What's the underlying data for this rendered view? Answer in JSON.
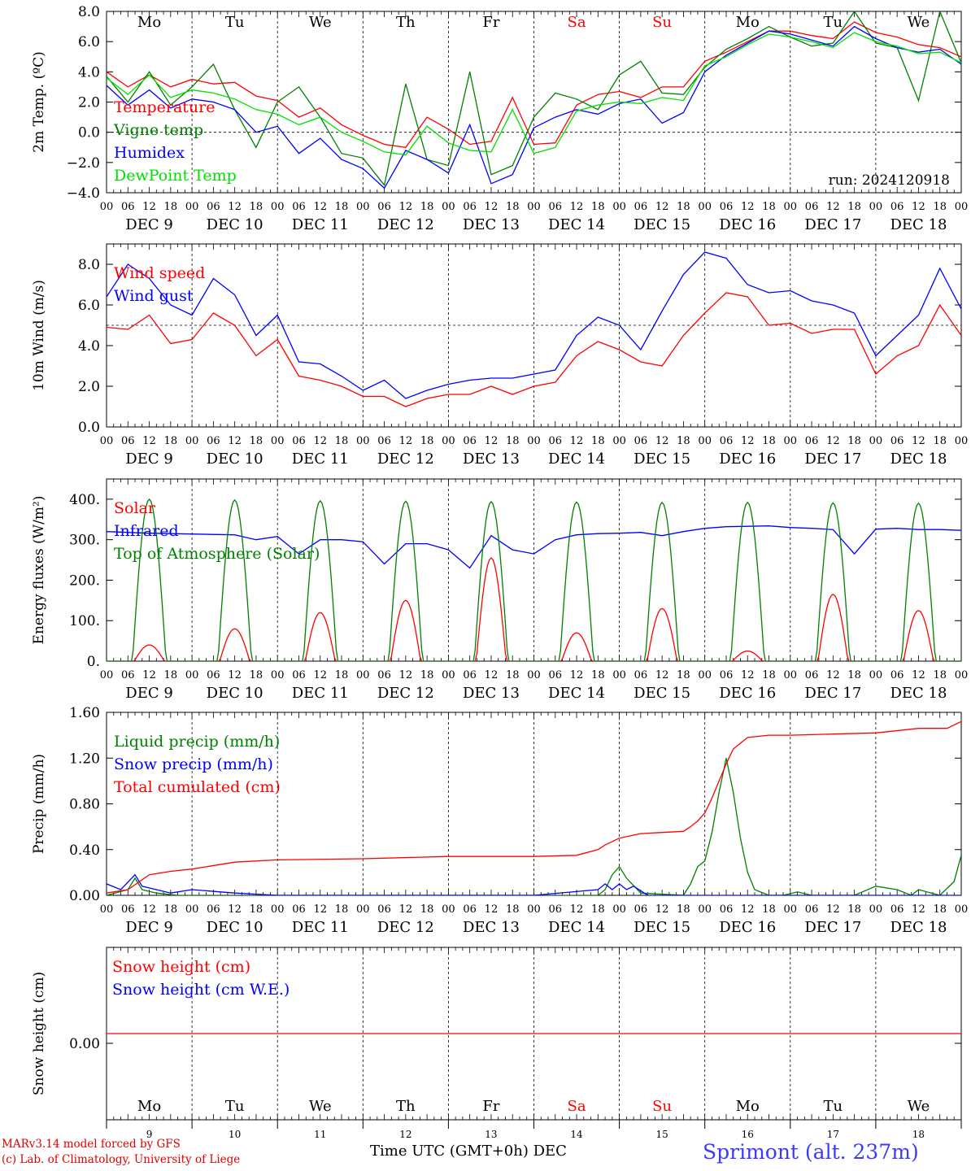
{
  "run_label": "run: 2024120918",
  "footer": {
    "credit_line1": "MARv3.14 model forced by GFS",
    "credit_line2": "(c) Lab. of Climatology, University of Liege",
    "x_axis_title": "Time UTC (GMT+0h) DEC",
    "station": "Sprimont (alt. 237m)"
  },
  "time_axis": {
    "hour_ticks": [
      "00",
      "06",
      "12",
      "18"
    ],
    "date_labels": [
      "DEC  9",
      "DEC 10",
      "DEC 11",
      "DEC 12",
      "DEC 13",
      "DEC 14",
      "DEC 15",
      "DEC 16",
      "DEC 17",
      "DEC 18"
    ],
    "weekdays": [
      "Mo",
      "Tu",
      "We",
      "Th",
      "Fr",
      "Sa",
      "Su",
      "Mo",
      "Tu",
      "We"
    ],
    "weekend_days": [
      5,
      6
    ],
    "day_numbers": [
      "9",
      "10",
      "11",
      "12",
      "13",
      "14",
      "15",
      "16",
      "17",
      "18"
    ]
  },
  "colors": {
    "red": "#ff0000",
    "green": "#008000",
    "blue": "#0000ff",
    "light_green": "#00e000",
    "weekend": "#ff0000"
  },
  "chart_data": [
    {
      "type": "line",
      "ylabel": "2m Temp. (ºC)",
      "ylim": [
        -4,
        8
      ],
      "yticks": [
        "8.0",
        "6.0",
        "4.0",
        "2.0",
        "0.0",
        "−2.0",
        "−4.0"
      ],
      "ytick_values": [
        8,
        6,
        4,
        2,
        0,
        -2,
        -4
      ],
      "reference_line": 0,
      "x_unit": "hours since DEC 9 00 UTC",
      "series": [
        {
          "name": "Temperature",
          "color": "#ff0000",
          "x": [
            0,
            6,
            12,
            18,
            24,
            30,
            36,
            42,
            48,
            54,
            60,
            66,
            72,
            78,
            84,
            90,
            96,
            102,
            108,
            114,
            120,
            126,
            132,
            138,
            144,
            150,
            156,
            162,
            168,
            174,
            180,
            186,
            192,
            198,
            204,
            210,
            216,
            222,
            228,
            234,
            240
          ],
          "y": [
            4.0,
            3.0,
            3.8,
            3.0,
            3.5,
            3.2,
            3.3,
            2.4,
            2.1,
            1.0,
            1.6,
            0.5,
            -0.2,
            -0.8,
            -1.0,
            1.0,
            0.2,
            -0.8,
            -0.6,
            2.3,
            -0.8,
            -0.7,
            1.8,
            2.5,
            2.7,
            2.3,
            3.0,
            3.0,
            4.7,
            5.3,
            6.0,
            6.7,
            6.7,
            6.4,
            6.2,
            7.3,
            6.6,
            6.3,
            5.8,
            5.6,
            5.0
          ]
        },
        {
          "name": "Vigne temp",
          "color": "#008000",
          "x": [
            0,
            6,
            12,
            18,
            24,
            30,
            36,
            42,
            48,
            54,
            60,
            66,
            72,
            78,
            84,
            90,
            96,
            102,
            108,
            114,
            120,
            126,
            132,
            138,
            144,
            150,
            156,
            162,
            168,
            174,
            180,
            186,
            192,
            198,
            204,
            210,
            216,
            222,
            228,
            234,
            240
          ],
          "y": [
            3.7,
            2.0,
            4.0,
            1.8,
            3.0,
            4.5,
            1.5,
            -1.0,
            2.0,
            3.0,
            1.0,
            -1.4,
            -1.7,
            -3.5,
            3.2,
            -1.8,
            -2.2,
            4.0,
            -2.8,
            -2.2,
            1.0,
            2.6,
            2.2,
            1.5,
            3.8,
            4.7,
            2.6,
            2.5,
            4.3,
            5.5,
            6.2,
            7.0,
            6.3,
            5.7,
            5.9,
            8.0,
            5.9,
            5.6,
            2.1,
            8.0,
            4.6
          ]
        },
        {
          "name": "Humidex",
          "color": "#0000ff",
          "x": [
            0,
            6,
            12,
            18,
            24,
            30,
            36,
            42,
            48,
            54,
            60,
            66,
            72,
            78,
            84,
            90,
            96,
            102,
            108,
            114,
            120,
            126,
            132,
            138,
            144,
            150,
            156,
            162,
            168,
            174,
            180,
            186,
            192,
            198,
            204,
            210,
            216,
            222,
            228,
            234,
            240
          ],
          "y": [
            3.1,
            1.8,
            2.8,
            1.6,
            2.2,
            2.0,
            1.5,
            0.0,
            0.4,
            -1.4,
            -0.4,
            -1.8,
            -2.4,
            -3.7,
            -1.2,
            -1.8,
            -2.7,
            0.5,
            -3.4,
            -2.8,
            0.3,
            1.0,
            1.5,
            1.2,
            1.9,
            2.2,
            0.6,
            1.3,
            4.0,
            5.1,
            5.9,
            6.7,
            6.5,
            6.1,
            5.7,
            7.0,
            6.2,
            5.6,
            5.3,
            5.5,
            4.5
          ]
        },
        {
          "name": "DewPoint Temp",
          "color": "#00e000",
          "x": [
            0,
            6,
            12,
            18,
            24,
            30,
            36,
            42,
            48,
            54,
            60,
            66,
            72,
            78,
            84,
            90,
            96,
            102,
            108,
            114,
            120,
            126,
            132,
            138,
            144,
            150,
            156,
            162,
            168,
            174,
            180,
            186,
            192,
            198,
            204,
            210,
            216,
            222,
            228,
            234,
            240
          ],
          "y": [
            3.6,
            2.5,
            3.8,
            2.3,
            2.8,
            2.6,
            2.2,
            1.5,
            1.2,
            0.5,
            1.0,
            0.0,
            -0.6,
            -1.3,
            -1.5,
            0.4,
            -0.7,
            -1.2,
            -1.3,
            1.5,
            -1.4,
            -1.0,
            1.4,
            1.8,
            2.0,
            1.9,
            2.3,
            2.1,
            4.4,
            5.0,
            5.8,
            6.5,
            6.3,
            6.0,
            5.6,
            6.6,
            6.0,
            5.7,
            5.2,
            5.3,
            4.6
          ]
        }
      ],
      "legend": [
        "Temperature",
        "Vigne temp",
        "Humidex",
        "DewPoint Temp"
      ]
    },
    {
      "type": "line",
      "ylabel": "10m Wind (m/s)",
      "ylim": [
        0,
        9
      ],
      "yticks": [
        "8.0",
        "6.0",
        "4.0",
        "2.0",
        "0.0"
      ],
      "ytick_values": [
        8,
        6,
        4,
        2,
        0
      ],
      "reference_line": 5,
      "x_unit": "hours since DEC 9 00 UTC",
      "series": [
        {
          "name": "Wind speed",
          "color": "#ff0000",
          "x": [
            0,
            6,
            12,
            18,
            24,
            30,
            36,
            42,
            48,
            54,
            60,
            66,
            72,
            78,
            84,
            90,
            96,
            102,
            108,
            114,
            120,
            126,
            132,
            138,
            144,
            150,
            156,
            162,
            168,
            174,
            180,
            186,
            192,
            198,
            204,
            210,
            216,
            222,
            228,
            234,
            240
          ],
          "y": [
            4.9,
            4.8,
            5.5,
            4.1,
            4.3,
            5.6,
            5.0,
            3.5,
            4.3,
            2.5,
            2.3,
            2.0,
            1.5,
            1.5,
            1.0,
            1.4,
            1.6,
            1.6,
            2.0,
            1.6,
            2.0,
            2.2,
            3.5,
            4.2,
            3.8,
            3.2,
            3.0,
            4.5,
            5.6,
            6.6,
            6.4,
            5.0,
            5.1,
            4.6,
            4.8,
            4.8,
            2.6,
            3.5,
            4.0,
            6.0,
            4.5
          ]
        },
        {
          "name": "Wind gust",
          "color": "#0000ff",
          "x": [
            0,
            6,
            12,
            18,
            24,
            30,
            36,
            42,
            48,
            54,
            60,
            66,
            72,
            78,
            84,
            90,
            96,
            102,
            108,
            114,
            120,
            126,
            132,
            138,
            144,
            150,
            156,
            162,
            168,
            174,
            180,
            186,
            192,
            198,
            204,
            210,
            216,
            222,
            228,
            234,
            240
          ],
          "y": [
            6.4,
            8.0,
            7.3,
            6.0,
            5.5,
            7.3,
            6.5,
            4.5,
            5.5,
            3.2,
            3.1,
            2.5,
            1.8,
            2.3,
            1.4,
            1.8,
            2.1,
            2.3,
            2.4,
            2.4,
            2.6,
            2.8,
            4.5,
            5.4,
            5.0,
            3.8,
            5.7,
            7.5,
            8.6,
            8.3,
            7.0,
            6.6,
            6.7,
            6.2,
            6.0,
            5.6,
            3.5,
            4.5,
            5.5,
            7.8,
            5.8
          ]
        }
      ],
      "legend": [
        "Wind speed",
        "Wind gust"
      ]
    },
    {
      "type": "line",
      "ylabel": "Energy fluxes (W/m²)",
      "ylim": [
        0,
        450
      ],
      "yticks": [
        "400.",
        "300.",
        "200.",
        "100.",
        "0."
      ],
      "ytick_values": [
        400,
        300,
        200,
        100,
        0
      ],
      "x_unit": "hours since DEC 9 00 UTC",
      "series": [
        {
          "name": "Solar",
          "color": "#ff0000",
          "daily_peaks": [
            40,
            80,
            120,
            150,
            255,
            70,
            130,
            25,
            165,
            125
          ]
        },
        {
          "name": "Infrared",
          "color": "#0000ff",
          "x": [
            0,
            12,
            24,
            36,
            42,
            48,
            54,
            60,
            66,
            72,
            78,
            84,
            90,
            96,
            102,
            108,
            114,
            120,
            126,
            132,
            138,
            144,
            150,
            156,
            162,
            168,
            174,
            180,
            186,
            192,
            198,
            204,
            210,
            216,
            222,
            228,
            234,
            240
          ],
          "y": [
            320,
            316,
            314,
            312,
            300,
            308,
            265,
            300,
            300,
            295,
            240,
            290,
            290,
            275,
            230,
            310,
            275,
            265,
            300,
            312,
            315,
            316,
            318,
            310,
            320,
            328,
            332,
            333,
            334,
            330,
            328,
            325,
            265,
            326,
            328,
            325,
            325,
            323
          ]
        },
        {
          "name": "Top of Atmosphere (Solar)",
          "color": "#008000",
          "daily_peaks": [
            400,
            398,
            396,
            395,
            394,
            393,
            392,
            392,
            391,
            390
          ]
        }
      ],
      "legend": [
        "Solar",
        "Infrared",
        "Top of Atmosphere (Solar)"
      ]
    },
    {
      "type": "line",
      "ylabel": "Precip (mm/h)",
      "ylim": [
        0,
        1.6
      ],
      "yticks": [
        "1.60",
        "1.20",
        "0.80",
        "0.40",
        "0.00"
      ],
      "ytick_values": [
        1.6,
        1.2,
        0.8,
        0.4,
        0
      ],
      "x_unit": "hours since DEC 9 00 UTC",
      "series": [
        {
          "name": "Liquid precip (mm/h)",
          "color": "#008000",
          "x": [
            0,
            6,
            8,
            10,
            14,
            20,
            24,
            36,
            48,
            96,
            120,
            138,
            140,
            142,
            144,
            146,
            150,
            162,
            164,
            166,
            168,
            170,
            172,
            174,
            176,
            178,
            180,
            182,
            186,
            190,
            194,
            198,
            202,
            210,
            216,
            222,
            226,
            228,
            234,
            238,
            240
          ],
          "y": [
            0.0,
            0.05,
            0.15,
            0.05,
            0.02,
            0.0,
            0.0,
            0.0,
            0.0,
            0.0,
            0.0,
            0.0,
            0.05,
            0.18,
            0.25,
            0.15,
            0.02,
            0.0,
            0.1,
            0.25,
            0.3,
            0.55,
            0.9,
            1.2,
            0.9,
            0.5,
            0.2,
            0.05,
            0.0,
            0.0,
            0.03,
            0.0,
            0.0,
            0.0,
            0.08,
            0.05,
            0.0,
            0.05,
            0.0,
            0.12,
            0.35
          ]
        },
        {
          "name": "Snow precip (mm/h)",
          "color": "#0000ff",
          "x": [
            0,
            4,
            8,
            10,
            14,
            18,
            24,
            36,
            48,
            96,
            120,
            138,
            140,
            142,
            144,
            146,
            148,
            152,
            160,
            240
          ],
          "y": [
            0.1,
            0.05,
            0.18,
            0.08,
            0.05,
            0.02,
            0.05,
            0.02,
            0.0,
            0.0,
            0.0,
            0.05,
            0.1,
            0.05,
            0.1,
            0.05,
            0.08,
            0.0,
            0.0,
            0.0
          ]
        },
        {
          "name": "Total cumulated (cm)",
          "color": "#ff0000",
          "x": [
            0,
            6,
            12,
            18,
            24,
            36,
            48,
            72,
            96,
            120,
            132,
            138,
            140,
            144,
            150,
            156,
            162,
            164,
            166,
            168,
            170,
            172,
            174,
            176,
            180,
            186,
            192,
            204,
            216,
            228,
            236,
            240
          ],
          "y": [
            0.02,
            0.05,
            0.18,
            0.21,
            0.23,
            0.29,
            0.31,
            0.32,
            0.34,
            0.34,
            0.35,
            0.4,
            0.44,
            0.5,
            0.54,
            0.55,
            0.56,
            0.6,
            0.65,
            0.72,
            0.85,
            1.0,
            1.15,
            1.28,
            1.38,
            1.4,
            1.4,
            1.41,
            1.42,
            1.46,
            1.46,
            1.52
          ]
        }
      ],
      "legend": [
        "Liquid precip (mm/h)",
        "Snow precip (mm/h)",
        "Total cumulated (cm)"
      ]
    },
    {
      "type": "line",
      "ylabel": "Snow height (cm)",
      "yticks": [
        "0.00"
      ],
      "ytick_values": [
        0
      ],
      "series": [
        {
          "name": "Snow height (cm)",
          "color": "#ff0000",
          "x": [
            0,
            240
          ],
          "y": [
            0,
            0
          ]
        },
        {
          "name": "Snow height (cm W.E.)",
          "color": "#0000ff",
          "x": [],
          "y": []
        }
      ],
      "legend": [
        "Snow height (cm)",
        "Snow height (cm W.E.)"
      ]
    }
  ]
}
